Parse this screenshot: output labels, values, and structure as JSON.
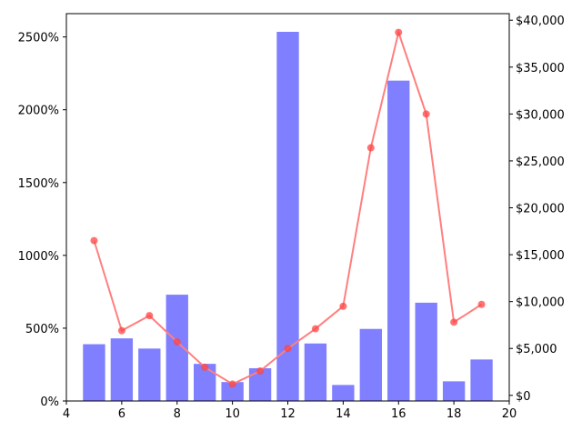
{
  "chart_data": {
    "type": "bar",
    "title": "",
    "xlabel": "",
    "ylabel": "",
    "y2label": "",
    "grid": false,
    "x": [
      5,
      6,
      7,
      8,
      9,
      10,
      11,
      12,
      13,
      14,
      15,
      16,
      17,
      18,
      19
    ],
    "xlim": [
      4,
      20
    ],
    "x_ticks": [
      4,
      6,
      8,
      10,
      12,
      14,
      16,
      18,
      20
    ],
    "x_tick_labels": [
      "4",
      "6",
      "8",
      "10",
      "12",
      "14",
      "16",
      "18",
      "20"
    ],
    "series": [
      {
        "type": "bar",
        "axis": "left",
        "color": "#7f7fff",
        "values": [
          390,
          430,
          360,
          730,
          255,
          130,
          225,
          2535,
          395,
          110,
          495,
          2200,
          675,
          135,
          285
        ]
      },
      {
        "type": "line",
        "axis": "right",
        "color": "#ff7f7f",
        "marker_color": "#ff4444",
        "values": [
          16500,
          6900,
          8500,
          5700,
          3000,
          1200,
          2600,
          5000,
          7100,
          9500,
          26400,
          38700,
          30000,
          7800,
          9700
        ]
      }
    ],
    "y_left": {
      "ylim": [
        0,
        2660
      ],
      "ticks": [
        0,
        500,
        1000,
        1500,
        2000,
        2500
      ],
      "tick_labels": [
        "0%",
        "500%",
        "1000%",
        "1500%",
        "2000%",
        "2500%"
      ]
    },
    "y_right": {
      "ylim": [
        -600,
        40700
      ],
      "ticks": [
        0,
        5000,
        10000,
        15000,
        20000,
        25000,
        30000,
        35000,
        40000
      ],
      "tick_labels": [
        "$0",
        "$5,000",
        "$10,000",
        "$15,000",
        "$20,000",
        "$25,000",
        "$30,000",
        "$35,000",
        "$40,000"
      ]
    }
  }
}
